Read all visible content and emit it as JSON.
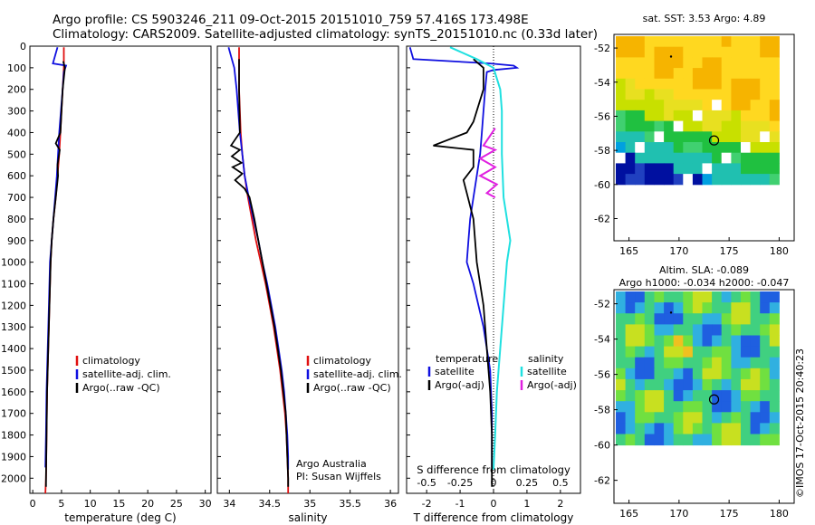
{
  "header": {
    "line1": "Argo profile: CS 5903246_211 09-Oct-2015 20151010_759 57.416S 173.498E",
    "line2": "Climatology: CARS2009. Satellite-adjusted climatology: synTS_20151010.nc (0.33d later)"
  },
  "chart_data": [
    {
      "type": "line",
      "panel": "temperature",
      "xlabel": "temperature (deg C)",
      "ylabel": "",
      "xlim": [
        -0.5,
        31
      ],
      "ylim": [
        2070,
        0
      ],
      "xticks": [
        0,
        5,
        10,
        15,
        20,
        25,
        30
      ],
      "yticks": [
        0,
        100,
        200,
        300,
        400,
        500,
        600,
        700,
        800,
        900,
        1000,
        1100,
        1200,
        1300,
        1400,
        1500,
        1600,
        1700,
        1800,
        1900,
        2000
      ],
      "legend": [
        "climatology",
        "satellite-adj. clim.",
        "Argo(..raw -QC)"
      ],
      "series": [
        {
          "name": "climatology",
          "color": "#e01010",
          "points": [
            [
              5.4,
              5
            ],
            [
              5.4,
              100
            ],
            [
              5.2,
              200
            ],
            [
              5.0,
              300
            ],
            [
              4.8,
              400
            ],
            [
              4.6,
              500
            ],
            [
              4.3,
              600
            ],
            [
              4.0,
              700
            ],
            [
              3.6,
              800
            ],
            [
              3.3,
              900
            ],
            [
              3.1,
              1000
            ],
            [
              2.9,
              1200
            ],
            [
              2.7,
              1400
            ],
            [
              2.5,
              1600
            ],
            [
              2.4,
              1800
            ],
            [
              2.3,
              2000
            ],
            [
              2.2,
              2070
            ]
          ]
        },
        {
          "name": "satellite-adj. clim.",
          "color": "#1010e0",
          "points": [
            [
              4.3,
              5
            ],
            [
              3.5,
              80
            ],
            [
              5.8,
              90
            ],
            [
              5.4,
              120
            ],
            [
              5.2,
              200
            ],
            [
              4.9,
              300
            ],
            [
              4.6,
              400
            ],
            [
              4.4,
              500
            ],
            [
              4.2,
              600
            ],
            [
              3.9,
              700
            ],
            [
              3.6,
              800
            ],
            [
              3.3,
              900
            ],
            [
              3.0,
              1000
            ],
            [
              2.8,
              1200
            ],
            [
              2.6,
              1400
            ],
            [
              2.4,
              1600
            ],
            [
              2.3,
              1800
            ],
            [
              2.2,
              1950
            ]
          ]
        },
        {
          "name": "Argo(..raw -QC)",
          "color": "#000000",
          "points": [
            [
              5.3,
              70
            ],
            [
              5.6,
              100
            ],
            [
              5.2,
              200
            ],
            [
              5.0,
              300
            ],
            [
              4.8,
              400
            ],
            [
              4.0,
              450
            ],
            [
              4.7,
              480
            ],
            [
              4.3,
              550
            ],
            [
              4.4,
              600
            ],
            [
              4.0,
              700
            ],
            [
              3.6,
              800
            ],
            [
              3.3,
              900
            ],
            [
              3.1,
              1000
            ],
            [
              2.9,
              1200
            ],
            [
              2.7,
              1400
            ],
            [
              2.5,
              1600
            ],
            [
              2.4,
              1800
            ],
            [
              2.3,
              2000
            ],
            [
              2.3,
              2040
            ]
          ]
        }
      ]
    },
    {
      "type": "line",
      "panel": "salinity",
      "xlabel": "salinity",
      "ylabel": "",
      "xlim": [
        33.85,
        36.1
      ],
      "ylim": [
        2070,
        0
      ],
      "xticks": [
        34,
        34.5,
        35,
        35.5,
        36
      ],
      "legend": [
        "climatology",
        "satellite-adj. clim.",
        "Argo(..raw -QC)"
      ],
      "annotations": [
        "Argo Australia",
        "PI: Susan Wijffels"
      ],
      "series": [
        {
          "name": "climatology",
          "color": "#e01010",
          "points": [
            [
              34.12,
              5
            ],
            [
              34.12,
              100
            ],
            [
              34.12,
              200
            ],
            [
              34.13,
              300
            ],
            [
              34.14,
              400
            ],
            [
              34.16,
              500
            ],
            [
              34.19,
              600
            ],
            [
              34.23,
              700
            ],
            [
              34.28,
              800
            ],
            [
              34.33,
              900
            ],
            [
              34.39,
              1000
            ],
            [
              34.45,
              1100
            ],
            [
              34.5,
              1200
            ],
            [
              34.55,
              1300
            ],
            [
              34.59,
              1400
            ],
            [
              34.63,
              1500
            ],
            [
              34.66,
              1600
            ],
            [
              34.69,
              1700
            ],
            [
              34.71,
              1800
            ],
            [
              34.72,
              1900
            ],
            [
              34.73,
              2000
            ],
            [
              34.73,
              2070
            ]
          ]
        },
        {
          "name": "satellite-adj. clim.",
          "color": "#1010e0",
          "points": [
            [
              33.99,
              5
            ],
            [
              34.03,
              60
            ],
            [
              34.06,
              100
            ],
            [
              34.09,
              200
            ],
            [
              34.11,
              300
            ],
            [
              34.13,
              400
            ],
            [
              34.16,
              500
            ],
            [
              34.19,
              600
            ],
            [
              34.24,
              700
            ],
            [
              34.3,
              800
            ],
            [
              34.36,
              900
            ],
            [
              34.41,
              1000
            ],
            [
              34.47,
              1100
            ],
            [
              34.52,
              1200
            ],
            [
              34.57,
              1300
            ],
            [
              34.61,
              1400
            ],
            [
              34.65,
              1500
            ],
            [
              34.68,
              1600
            ],
            [
              34.7,
              1700
            ],
            [
              34.72,
              1800
            ],
            [
              34.73,
              1900
            ],
            [
              34.73,
              1960
            ]
          ]
        },
        {
          "name": "Argo(..raw -QC)",
          "color": "#000000",
          "points": [
            [
              34.12,
              60
            ],
            [
              34.12,
              200
            ],
            [
              34.13,
              400
            ],
            [
              34.02,
              460
            ],
            [
              34.13,
              480
            ],
            [
              34.03,
              510
            ],
            [
              34.15,
              540
            ],
            [
              34.04,
              560
            ],
            [
              34.16,
              590
            ],
            [
              34.07,
              620
            ],
            [
              34.19,
              660
            ],
            [
              34.25,
              700
            ],
            [
              34.31,
              800
            ],
            [
              34.36,
              900
            ],
            [
              34.41,
              1000
            ],
            [
              34.46,
              1100
            ],
            [
              34.51,
              1200
            ],
            [
              34.56,
              1300
            ],
            [
              34.6,
              1400
            ],
            [
              34.64,
              1500
            ],
            [
              34.67,
              1600
            ],
            [
              34.7,
              1700
            ],
            [
              34.71,
              1800
            ],
            [
              34.72,
              1900
            ],
            [
              34.73,
              2000
            ],
            [
              34.73,
              2040
            ]
          ]
        }
      ]
    },
    {
      "type": "line",
      "panel": "difference",
      "xlabel": "T difference from climatology",
      "top_axis_label": "S difference from climatology",
      "xlim": [
        -2.6,
        2.6
      ],
      "ylim": [
        2070,
        0
      ],
      "xticks": [
        -2,
        -1,
        0,
        1,
        2
      ],
      "top_xticks": [
        "-0.5",
        "-0.25",
        "0",
        "0.25",
        "0.5"
      ],
      "legend_headers": [
        "temperature",
        "salinity"
      ],
      "legend": [
        "satellite",
        "Argo(-adj)",
        "satellite",
        "Argo(-adj)"
      ],
      "series": [
        {
          "name": "temperature satellite",
          "color": "#1010e0",
          "points": [
            [
              -2.5,
              5
            ],
            [
              -2.4,
              60
            ],
            [
              -0.1,
              80
            ],
            [
              0.6,
              90
            ],
            [
              0.7,
              100
            ],
            [
              0,
              110
            ],
            [
              -0.2,
              120
            ],
            [
              -0.25,
              200
            ],
            [
              -0.3,
              300
            ],
            [
              -0.35,
              400
            ],
            [
              -0.4,
              500
            ],
            [
              -0.5,
              600
            ],
            [
              -0.6,
              700
            ],
            [
              -0.7,
              800
            ],
            [
              -0.75,
              900
            ],
            [
              -0.8,
              1000
            ],
            [
              -0.6,
              1100
            ],
            [
              -0.3,
              1300
            ],
            [
              -0.1,
              1500
            ],
            [
              -0.05,
              1700
            ],
            [
              -0.05,
              1950
            ]
          ]
        },
        {
          "name": "temperature Argo(-adj)",
          "color": "#000000",
          "points": [
            [
              -0.6,
              60
            ],
            [
              -0.3,
              100
            ],
            [
              -0.3,
              200
            ],
            [
              -0.6,
              350
            ],
            [
              -0.8,
              400
            ],
            [
              -1.8,
              460
            ],
            [
              -0.6,
              480
            ],
            [
              -0.6,
              560
            ],
            [
              -0.9,
              620
            ],
            [
              -0.8,
              680
            ],
            [
              -0.6,
              800
            ],
            [
              -0.5,
              1000
            ],
            [
              -0.3,
              1200
            ],
            [
              -0.2,
              1400
            ],
            [
              -0.1,
              1600
            ],
            [
              -0.05,
              1800
            ],
            [
              -0.05,
              2040
            ]
          ]
        },
        {
          "name": "salinity satellite",
          "color": "#20e0e0",
          "points": [
            [
              -1.3,
              5
            ],
            [
              -0.5,
              60
            ],
            [
              0.0,
              100
            ],
            [
              0.2,
              200
            ],
            [
              0.25,
              300
            ],
            [
              0.25,
              500
            ],
            [
              0.3,
              700
            ],
            [
              0.4,
              800
            ],
            [
              0.5,
              900
            ],
            [
              0.4,
              1000
            ],
            [
              0.3,
              1200
            ],
            [
              0.2,
              1400
            ],
            [
              0.1,
              1600
            ],
            [
              0.05,
              1800
            ],
            [
              0.0,
              1960
            ]
          ]
        },
        {
          "name": "salinity Argo(-adj)",
          "color": "#e020e0",
          "points": [
            [
              0.05,
              380
            ],
            [
              -0.3,
              460
            ],
            [
              0.05,
              480
            ],
            [
              -0.4,
              520
            ],
            [
              0.05,
              560
            ],
            [
              -0.4,
              600
            ],
            [
              0.1,
              640
            ],
            [
              -0.2,
              680
            ],
            [
              0.05,
              700
            ]
          ]
        }
      ]
    }
  ],
  "maps": {
    "sst": {
      "title": "sat. SST: 3.53 Argo: 4.89",
      "xticks": [
        165,
        170,
        175,
        180
      ],
      "yticks": [
        -52,
        -54,
        -56,
        -58,
        -60,
        -62
      ],
      "argo_position": [
        173.498,
        -57.416
      ]
    },
    "sla": {
      "title1": "Altim. SLA: -0.089",
      "title2": "Argo h1000: -0.034 h2000: -0.047",
      "xticks": [
        165,
        170,
        175,
        180
      ],
      "yticks": [
        -52,
        -54,
        -56,
        -58,
        -60,
        -62
      ],
      "argo_position": [
        173.498,
        -57.416
      ]
    }
  },
  "footer": {
    "credit": "©IMOS 17-Oct-2015 20:40:23"
  }
}
